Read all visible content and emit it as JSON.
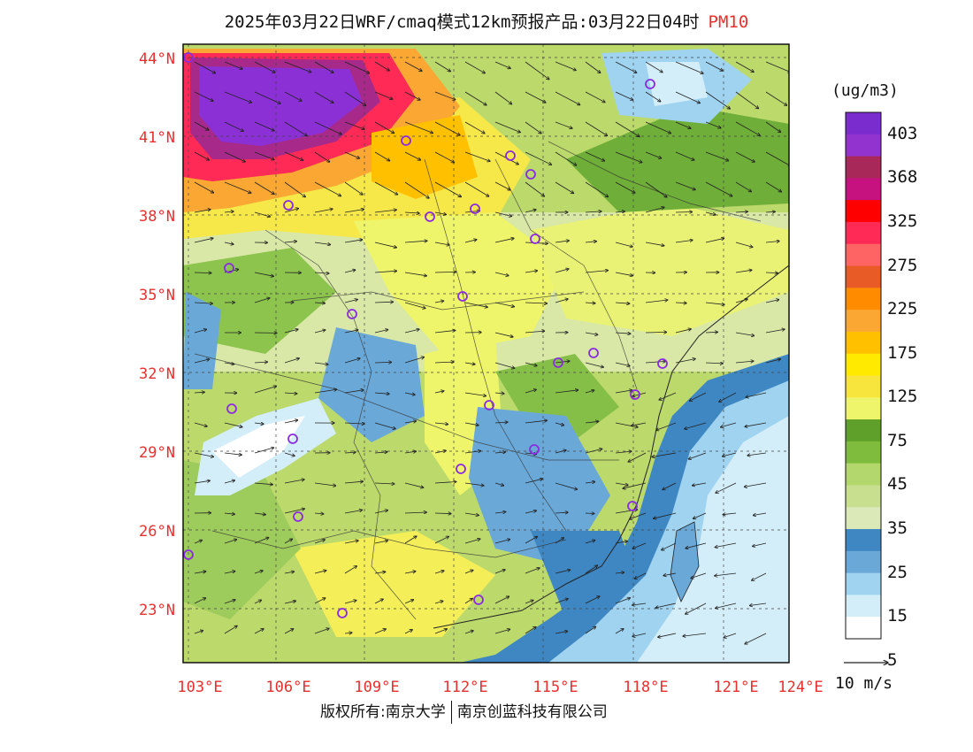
{
  "header": {
    "title": "2025年03月22日WRF/cmaq模式12km预报产品:03月22日04时",
    "variable": "PM10"
  },
  "legend": {
    "unit": "(ug/m3)",
    "labels": [
      "403",
      "368",
      "325",
      "275",
      "225",
      "175",
      "125",
      "75",
      "45",
      "35",
      "25",
      "15",
      "5"
    ],
    "colors": [
      "#7a2ccf",
      "#9333cf",
      "#a8285a",
      "#c6127f",
      "#ff0000",
      "#ff2a55",
      "#ff6464",
      "#e85a26",
      "#ff8c00",
      "#fba733",
      "#ffc000",
      "#ffea00",
      "#f7e43c",
      "#eff56a",
      "#5fa02a",
      "#7fbb3c",
      "#b3d76d",
      "#c8df8f",
      "#dbe8b8",
      "#3f87c2",
      "#6aa8d8",
      "#9fd3f0",
      "#d3eef9",
      "#ffffff"
    ]
  },
  "wind_scale": {
    "label": "10 m/s"
  },
  "axes": {
    "lat_labels": [
      "44°N",
      "41°N",
      "38°N",
      "35°N",
      "32°N",
      "29°N",
      "26°N",
      "23°N"
    ],
    "lon_labels": [
      "103°E",
      "106°E",
      "109°E",
      "112°E",
      "115°E",
      "118°E",
      "121°E",
      "124°E"
    ]
  },
  "footer": {
    "copyright": "版权所有:南京大学",
    "company": "南京创蓝科技有限公司"
  }
}
